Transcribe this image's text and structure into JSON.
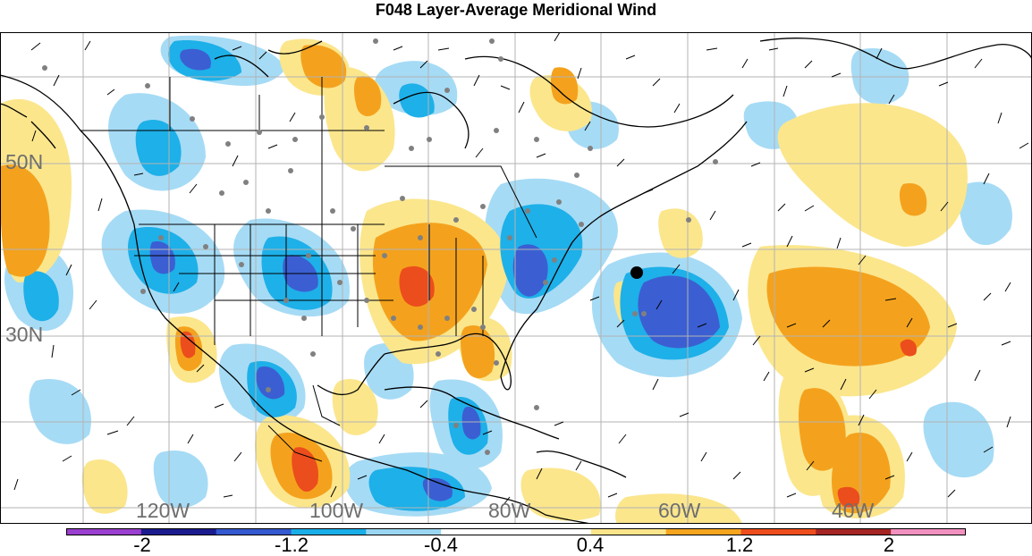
{
  "title": "F048 Layer-Average Meridional Wind",
  "map": {
    "lat_labels": [
      "50N",
      "30N"
    ],
    "lon_labels": [
      "120W",
      "100W",
      "80W",
      "60W",
      "40W"
    ]
  },
  "colorbar": {
    "colors": [
      "#9a3fcf",
      "#1b1b8f",
      "#3358d0",
      "#19aee8",
      "#9ad6f2",
      "#ffffff",
      "#ffffff",
      "#fbe58a",
      "#f5a51e",
      "#ee4d1c",
      "#a52424",
      "#f291bf"
    ],
    "tick_labels": [
      "-2",
      "-1.2",
      "-0.4",
      "0.4",
      "1.2",
      "2"
    ]
  },
  "colors": {
    "light_blue": "#a6dbf5",
    "mid_blue": "#1eb0e8",
    "blue": "#3b5fd2",
    "light_yellow": "#fbe68c",
    "orange": "#f4a21d",
    "red_orange": "#ec4d1c",
    "grid": "#b3b3b3",
    "label_gray": "#6e6e6e"
  }
}
